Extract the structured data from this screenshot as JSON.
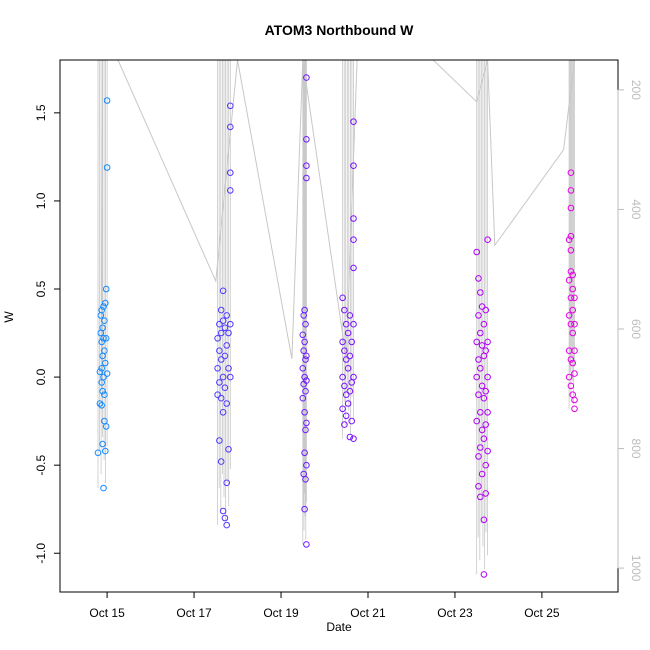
{
  "chart_data": {
    "type": "scatter",
    "title": "ATOM3 Northbound W",
    "xlabel": "Date",
    "ylabel": "W",
    "xlim": [
      "2018-10-13T22:00",
      "2018-10-26T18:00"
    ],
    "ylim": [
      -1.22,
      1.8
    ],
    "x_ticks": [
      {
        "date": "2018-10-15",
        "label": "Oct 15"
      },
      {
        "date": "2018-10-17",
        "label": "Oct 17"
      },
      {
        "date": "2018-10-19",
        "label": "Oct 19"
      },
      {
        "date": "2018-10-21",
        "label": "Oct 21"
      },
      {
        "date": "2018-10-23",
        "label": "Oct 23"
      },
      {
        "date": "2018-10-25",
        "label": "Oct 25"
      }
    ],
    "y_ticks": [
      -1.0,
      -0.5,
      0.0,
      0.5,
      1.0,
      1.5
    ],
    "secondary_axis": {
      "side": "right",
      "color": "#bdbdbd",
      "reversed": true,
      "ylim": [
        1040,
        150
      ],
      "ticks": [
        200,
        400,
        600,
        800,
        1000
      ]
    },
    "grid": false,
    "legend": "none",
    "color_gradient": [
      "#00a8ff",
      "#5a2bff",
      "#9400ff",
      "#ff00dd"
    ],
    "secondary_series": {
      "name": "",
      "color": "#c8c8c8",
      "note_points": [
        {
          "x": "2018-10-14T21:00",
          "y": 700
        },
        {
          "x": "2018-10-14T21:30",
          "y": 150
        },
        {
          "x": "2018-10-15T06:00",
          "y": 150
        },
        {
          "x": "2018-10-17T12:00",
          "y": 520
        },
        {
          "x": "2018-10-18T00:00",
          "y": 150
        },
        {
          "x": "2018-10-19T06:00",
          "y": 650
        },
        {
          "x": "2018-10-19T12:00",
          "y": 150
        },
        {
          "x": "2018-10-20T12:00",
          "y": 650
        },
        {
          "x": "2018-10-20T18:00",
          "y": 150
        },
        {
          "x": "2018-10-22T12:00",
          "y": 150
        },
        {
          "x": "2018-10-23T12:00",
          "y": 220
        },
        {
          "x": "2018-10-23T18:00",
          "y": 150
        },
        {
          "x": "2018-10-23T22:00",
          "y": 460
        },
        {
          "x": "2018-10-25T12:00",
          "y": 300
        },
        {
          "x": "2018-10-25T18:00",
          "y": 150
        }
      ]
    },
    "series": [
      {
        "name": "",
        "points": [
          {
            "x": "2018-10-14T19:00",
            "y": -0.43
          },
          {
            "x": "2018-10-14T20:00",
            "y": 0.03
          },
          {
            "x": "2018-10-14T20:00",
            "y": -0.15
          },
          {
            "x": "2018-10-14T20:30",
            "y": 0.35
          },
          {
            "x": "2018-10-14T20:30",
            "y": 0.25
          },
          {
            "x": "2018-10-14T21:00",
            "y": 0.38
          },
          {
            "x": "2018-10-14T21:00",
            "y": 0.2
          },
          {
            "x": "2018-10-14T21:00",
            "y": 0.05
          },
          {
            "x": "2018-10-14T21:00",
            "y": -0.03
          },
          {
            "x": "2018-10-14T21:00",
            "y": -0.16
          },
          {
            "x": "2018-10-14T21:30",
            "y": 0.28
          },
          {
            "x": "2018-10-14T21:30",
            "y": 0.12
          },
          {
            "x": "2018-10-14T21:30",
            "y": -0.08
          },
          {
            "x": "2018-10-14T21:30",
            "y": -0.38
          },
          {
            "x": "2018-10-14T22:00",
            "y": 0.4
          },
          {
            "x": "2018-10-14T22:00",
            "y": 0.22
          },
          {
            "x": "2018-10-14T22:00",
            "y": 0.0
          },
          {
            "x": "2018-10-14T22:00",
            "y": -0.63
          },
          {
            "x": "2018-10-14T22:30",
            "y": 0.32
          },
          {
            "x": "2018-10-14T22:30",
            "y": 0.15
          },
          {
            "x": "2018-10-14T22:30",
            "y": -0.1
          },
          {
            "x": "2018-10-14T22:30",
            "y": -0.25
          },
          {
            "x": "2018-10-14T23:00",
            "y": 0.42
          },
          {
            "x": "2018-10-14T23:00",
            "y": 0.08
          },
          {
            "x": "2018-10-14T23:00",
            "y": -0.42
          },
          {
            "x": "2018-10-14T23:30",
            "y": 0.5
          },
          {
            "x": "2018-10-14T23:30",
            "y": 0.22
          },
          {
            "x": "2018-10-14T23:30",
            "y": -0.28
          },
          {
            "x": "2018-10-15T00:00",
            "y": 1.57
          },
          {
            "x": "2018-10-15T00:00",
            "y": 1.19
          },
          {
            "x": "2018-10-15T00:00",
            "y": 0.02
          }
        ]
      },
      {
        "name": "",
        "points": [
          {
            "x": "2018-10-17T13:00",
            "y": 0.22
          },
          {
            "x": "2018-10-17T13:00",
            "y": 0.05
          },
          {
            "x": "2018-10-17T13:00",
            "y": -0.1
          },
          {
            "x": "2018-10-17T14:00",
            "y": 0.3
          },
          {
            "x": "2018-10-17T14:00",
            "y": 0.15
          },
          {
            "x": "2018-10-17T14:00",
            "y": -0.03
          },
          {
            "x": "2018-10-17T14:00",
            "y": -0.36
          },
          {
            "x": "2018-10-17T15:00",
            "y": 0.38
          },
          {
            "x": "2018-10-17T15:00",
            "y": 0.25
          },
          {
            "x": "2018-10-17T15:00",
            "y": 0.1
          },
          {
            "x": "2018-10-17T15:00",
            "y": -0.12
          },
          {
            "x": "2018-10-17T15:00",
            "y": -0.48
          },
          {
            "x": "2018-10-17T16:00",
            "y": 0.49
          },
          {
            "x": "2018-10-17T16:00",
            "y": 0.32
          },
          {
            "x": "2018-10-17T16:00",
            "y": 0.0
          },
          {
            "x": "2018-10-17T16:00",
            "y": -0.2
          },
          {
            "x": "2018-10-17T16:00",
            "y": -0.76
          },
          {
            "x": "2018-10-17T17:00",
            "y": 0.28
          },
          {
            "x": "2018-10-17T17:00",
            "y": 0.12
          },
          {
            "x": "2018-10-17T17:00",
            "y": -0.06
          },
          {
            "x": "2018-10-17T17:00",
            "y": -0.8
          },
          {
            "x": "2018-10-17T18:00",
            "y": 0.35
          },
          {
            "x": "2018-10-17T18:00",
            "y": 0.18
          },
          {
            "x": "2018-10-17T18:00",
            "y": -0.15
          },
          {
            "x": "2018-10-17T18:00",
            "y": -0.6
          },
          {
            "x": "2018-10-17T18:00",
            "y": -0.84
          },
          {
            "x": "2018-10-17T19:00",
            "y": 0.25
          },
          {
            "x": "2018-10-17T19:00",
            "y": 0.05
          },
          {
            "x": "2018-10-17T19:00",
            "y": -0.41
          },
          {
            "x": "2018-10-17T20:00",
            "y": 1.54
          },
          {
            "x": "2018-10-17T20:00",
            "y": 1.42
          },
          {
            "x": "2018-10-17T20:00",
            "y": 1.16
          },
          {
            "x": "2018-10-17T20:00",
            "y": 1.06
          },
          {
            "x": "2018-10-17T20:00",
            "y": 0.3
          },
          {
            "x": "2018-10-17T20:00",
            "y": 0.0
          }
        ]
      },
      {
        "name": "",
        "points": [
          {
            "x": "2018-10-19T12:00",
            "y": 0.24
          },
          {
            "x": "2018-10-19T12:00",
            "y": 0.05
          },
          {
            "x": "2018-10-19T12:00",
            "y": -0.12
          },
          {
            "x": "2018-10-19T12:30",
            "y": 0.35
          },
          {
            "x": "2018-10-19T12:30",
            "y": 0.15
          },
          {
            "x": "2018-10-19T12:30",
            "y": -0.04
          },
          {
            "x": "2018-10-19T12:30",
            "y": -0.55
          },
          {
            "x": "2018-10-19T13:00",
            "y": 0.38
          },
          {
            "x": "2018-10-19T13:00",
            "y": 0.2
          },
          {
            "x": "2018-10-19T13:00",
            "y": 0.0
          },
          {
            "x": "2018-10-19T13:00",
            "y": -0.2
          },
          {
            "x": "2018-10-19T13:00",
            "y": -0.43
          },
          {
            "x": "2018-10-19T13:00",
            "y": -0.75
          },
          {
            "x": "2018-10-19T13:30",
            "y": 0.3
          },
          {
            "x": "2018-10-19T13:30",
            "y": 0.1
          },
          {
            "x": "2018-10-19T13:30",
            "y": -0.08
          },
          {
            "x": "2018-10-19T13:30",
            "y": -0.3
          },
          {
            "x": "2018-10-19T13:30",
            "y": -0.58
          },
          {
            "x": "2018-10-19T14:00",
            "y": 1.7
          },
          {
            "x": "2018-10-19T14:00",
            "y": 1.35
          },
          {
            "x": "2018-10-19T14:00",
            "y": 1.2
          },
          {
            "x": "2018-10-19T14:00",
            "y": 1.13
          },
          {
            "x": "2018-10-19T14:00",
            "y": 0.12
          },
          {
            "x": "2018-10-19T14:00",
            "y": -0.02
          },
          {
            "x": "2018-10-19T14:00",
            "y": -0.26
          },
          {
            "x": "2018-10-19T14:00",
            "y": -0.5
          },
          {
            "x": "2018-10-19T14:00",
            "y": -0.95
          }
        ]
      },
      {
        "name": "",
        "points": [
          {
            "x": "2018-10-20T10:00",
            "y": 0.45
          },
          {
            "x": "2018-10-20T10:00",
            "y": 0.2
          },
          {
            "x": "2018-10-20T10:00",
            "y": 0.0
          },
          {
            "x": "2018-10-20T10:00",
            "y": -0.18
          },
          {
            "x": "2018-10-20T11:00",
            "y": 0.38
          },
          {
            "x": "2018-10-20T11:00",
            "y": 0.15
          },
          {
            "x": "2018-10-20T11:00",
            "y": -0.05
          },
          {
            "x": "2018-10-20T11:00",
            "y": -0.27
          },
          {
            "x": "2018-10-20T12:00",
            "y": 0.3
          },
          {
            "x": "2018-10-20T12:00",
            "y": 0.1
          },
          {
            "x": "2018-10-20T12:00",
            "y": -0.1
          },
          {
            "x": "2018-10-20T12:00",
            "y": -0.22
          },
          {
            "x": "2018-10-20T13:00",
            "y": 0.25
          },
          {
            "x": "2018-10-20T13:00",
            "y": 0.05
          },
          {
            "x": "2018-10-20T13:00",
            "y": -0.15
          },
          {
            "x": "2018-10-20T14:00",
            "y": 0.35
          },
          {
            "x": "2018-10-20T14:00",
            "y": 0.12
          },
          {
            "x": "2018-10-20T14:00",
            "y": -0.08
          },
          {
            "x": "2018-10-20T14:00",
            "y": -0.34
          },
          {
            "x": "2018-10-20T15:00",
            "y": 0.2
          },
          {
            "x": "2018-10-20T15:00",
            "y": -0.03
          },
          {
            "x": "2018-10-20T15:00",
            "y": -0.25
          },
          {
            "x": "2018-10-20T16:00",
            "y": 1.45
          },
          {
            "x": "2018-10-20T16:00",
            "y": 1.2
          },
          {
            "x": "2018-10-20T16:00",
            "y": 0.9
          },
          {
            "x": "2018-10-20T16:00",
            "y": 0.78
          },
          {
            "x": "2018-10-20T16:00",
            "y": 0.62
          },
          {
            "x": "2018-10-20T16:00",
            "y": 0.3
          },
          {
            "x": "2018-10-20T16:00",
            "y": 0.0
          },
          {
            "x": "2018-10-20T16:00",
            "y": -0.35
          }
        ]
      },
      {
        "name": "",
        "points": [
          {
            "x": "2018-10-23T12:00",
            "y": 0.71
          },
          {
            "x": "2018-10-23T12:00",
            "y": 0.2
          },
          {
            "x": "2018-10-23T12:00",
            "y": 0.0
          },
          {
            "x": "2018-10-23T12:00",
            "y": -0.25
          },
          {
            "x": "2018-10-23T13:00",
            "y": 0.56
          },
          {
            "x": "2018-10-23T13:00",
            "y": 0.35
          },
          {
            "x": "2018-10-23T13:00",
            "y": 0.1
          },
          {
            "x": "2018-10-23T13:00",
            "y": -0.1
          },
          {
            "x": "2018-10-23T13:00",
            "y": -0.45
          },
          {
            "x": "2018-10-23T13:00",
            "y": -0.62
          },
          {
            "x": "2018-10-23T14:00",
            "y": 0.48
          },
          {
            "x": "2018-10-23T14:00",
            "y": 0.25
          },
          {
            "x": "2018-10-23T14:00",
            "y": 0.05
          },
          {
            "x": "2018-10-23T14:00",
            "y": -0.2
          },
          {
            "x": "2018-10-23T14:00",
            "y": -0.4
          },
          {
            "x": "2018-10-23T14:00",
            "y": -0.68
          },
          {
            "x": "2018-10-23T15:00",
            "y": 0.4
          },
          {
            "x": "2018-10-23T15:00",
            "y": 0.18
          },
          {
            "x": "2018-10-23T15:00",
            "y": -0.05
          },
          {
            "x": "2018-10-23T15:00",
            "y": -0.3
          },
          {
            "x": "2018-10-23T15:00",
            "y": -0.55
          },
          {
            "x": "2018-10-23T16:00",
            "y": 0.3
          },
          {
            "x": "2018-10-23T16:00",
            "y": 0.12
          },
          {
            "x": "2018-10-23T16:00",
            "y": -0.12
          },
          {
            "x": "2018-10-23T16:00",
            "y": -0.35
          },
          {
            "x": "2018-10-23T16:00",
            "y": -0.81
          },
          {
            "x": "2018-10-23T16:00",
            "y": -1.12
          },
          {
            "x": "2018-10-23T17:00",
            "y": 0.38
          },
          {
            "x": "2018-10-23T17:00",
            "y": 0.15
          },
          {
            "x": "2018-10-23T17:00",
            "y": -0.08
          },
          {
            "x": "2018-10-23T17:00",
            "y": -0.27
          },
          {
            "x": "2018-10-23T17:00",
            "y": -0.5
          },
          {
            "x": "2018-10-23T17:00",
            "y": -0.66
          },
          {
            "x": "2018-10-23T18:00",
            "y": 0.78
          },
          {
            "x": "2018-10-23T18:00",
            "y": 0.2
          },
          {
            "x": "2018-10-23T18:00",
            "y": 0.0
          },
          {
            "x": "2018-10-23T18:00",
            "y": -0.2
          },
          {
            "x": "2018-10-23T18:00",
            "y": -0.42
          }
        ]
      },
      {
        "name": "",
        "points": [
          {
            "x": "2018-10-25T15:00",
            "y": 0.78
          },
          {
            "x": "2018-10-25T15:00",
            "y": 0.55
          },
          {
            "x": "2018-10-25T15:00",
            "y": 0.35
          },
          {
            "x": "2018-10-25T15:00",
            "y": 0.15
          },
          {
            "x": "2018-10-25T15:00",
            "y": 0.0
          },
          {
            "x": "2018-10-25T16:00",
            "y": 1.16
          },
          {
            "x": "2018-10-25T16:00",
            "y": 1.06
          },
          {
            "x": "2018-10-25T16:00",
            "y": 0.96
          },
          {
            "x": "2018-10-25T16:00",
            "y": 0.8
          },
          {
            "x": "2018-10-25T16:00",
            "y": 0.72
          },
          {
            "x": "2018-10-25T16:00",
            "y": 0.6
          },
          {
            "x": "2018-10-25T16:00",
            "y": 0.45
          },
          {
            "x": "2018-10-25T16:00",
            "y": 0.3
          },
          {
            "x": "2018-10-25T16:00",
            "y": 0.1
          },
          {
            "x": "2018-10-25T16:00",
            "y": -0.05
          },
          {
            "x": "2018-10-25T17:00",
            "y": 0.58
          },
          {
            "x": "2018-10-25T17:00",
            "y": 0.5
          },
          {
            "x": "2018-10-25T17:00",
            "y": 0.38
          },
          {
            "x": "2018-10-25T17:00",
            "y": 0.25
          },
          {
            "x": "2018-10-25T17:00",
            "y": 0.08
          },
          {
            "x": "2018-10-25T17:00",
            "y": -0.1
          },
          {
            "x": "2018-10-25T18:00",
            "y": 0.45
          },
          {
            "x": "2018-10-25T18:00",
            "y": 0.3
          },
          {
            "x": "2018-10-25T18:00",
            "y": 0.15
          },
          {
            "x": "2018-10-25T18:00",
            "y": 0.02
          },
          {
            "x": "2018-10-25T18:00",
            "y": -0.13
          },
          {
            "x": "2018-10-25T18:00",
            "y": -0.18
          }
        ]
      }
    ]
  }
}
